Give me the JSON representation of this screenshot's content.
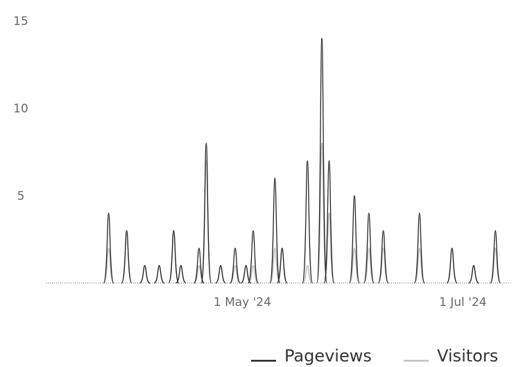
{
  "chart_data": {
    "type": "line",
    "title": "",
    "xlabel": "",
    "ylabel": "",
    "x_start": "2024-03-08",
    "x_end": "2024-07-14",
    "x_ticks": [
      {
        "date": "2024-05-01",
        "label": "1 May '24"
      },
      {
        "date": "2024-07-01",
        "label": "1 Jul '24"
      }
    ],
    "ylim": [
      0,
      15
    ],
    "y_ticks": [
      {
        "value": 5,
        "label": "5"
      },
      {
        "value": 10,
        "label": "10"
      },
      {
        "value": 15,
        "label": "15"
      }
    ],
    "grid": false,
    "legend_position": "bottom-right",
    "series": [
      {
        "name": "Pageviews",
        "color": "#222222",
        "points": [
          {
            "x": "2024-03-25",
            "y": 4
          },
          {
            "x": "2024-03-30",
            "y": 3
          },
          {
            "x": "2024-04-04",
            "y": 1
          },
          {
            "x": "2024-04-08",
            "y": 1
          },
          {
            "x": "2024-04-12",
            "y": 3
          },
          {
            "x": "2024-04-14",
            "y": 1
          },
          {
            "x": "2024-04-19",
            "y": 2
          },
          {
            "x": "2024-04-21",
            "y": 8
          },
          {
            "x": "2024-04-25",
            "y": 1
          },
          {
            "x": "2024-04-29",
            "y": 2
          },
          {
            "x": "2024-05-02",
            "y": 1
          },
          {
            "x": "2024-05-04",
            "y": 3
          },
          {
            "x": "2024-05-10",
            "y": 6
          },
          {
            "x": "2024-05-12",
            "y": 2
          },
          {
            "x": "2024-05-19",
            "y": 7
          },
          {
            "x": "2024-05-23",
            "y": 14
          },
          {
            "x": "2024-05-25",
            "y": 7
          },
          {
            "x": "2024-06-01",
            "y": 5
          },
          {
            "x": "2024-06-05",
            "y": 4
          },
          {
            "x": "2024-06-09",
            "y": 3
          },
          {
            "x": "2024-06-19",
            "y": 4
          },
          {
            "x": "2024-06-28",
            "y": 2
          },
          {
            "x": "2024-07-04",
            "y": 1
          },
          {
            "x": "2024-07-10",
            "y": 3
          }
        ]
      },
      {
        "name": "Visitors",
        "color": "#bdbdbd",
        "points": [
          {
            "x": "2024-03-25",
            "y": 2
          },
          {
            "x": "2024-03-30",
            "y": 3
          },
          {
            "x": "2024-04-04",
            "y": 1
          },
          {
            "x": "2024-04-08",
            "y": 1
          },
          {
            "x": "2024-04-12",
            "y": 3
          },
          {
            "x": "2024-04-14",
            "y": 1
          },
          {
            "x": "2024-04-19",
            "y": 1
          },
          {
            "x": "2024-04-21",
            "y": 7
          },
          {
            "x": "2024-04-25",
            "y": 1
          },
          {
            "x": "2024-04-29",
            "y": 1
          },
          {
            "x": "2024-05-02",
            "y": 1
          },
          {
            "x": "2024-05-04",
            "y": 1
          },
          {
            "x": "2024-05-10",
            "y": 2
          },
          {
            "x": "2024-05-12",
            "y": 2
          },
          {
            "x": "2024-05-19",
            "y": 1
          },
          {
            "x": "2024-05-23",
            "y": 8
          },
          {
            "x": "2024-05-25",
            "y": 4
          },
          {
            "x": "2024-06-01",
            "y": 2
          },
          {
            "x": "2024-06-05",
            "y": 2
          },
          {
            "x": "2024-06-09",
            "y": 2
          },
          {
            "x": "2024-06-19",
            "y": 2
          },
          {
            "x": "2024-06-28",
            "y": 2
          },
          {
            "x": "2024-07-04",
            "y": 1
          },
          {
            "x": "2024-07-10",
            "y": 2
          }
        ]
      }
    ]
  }
}
